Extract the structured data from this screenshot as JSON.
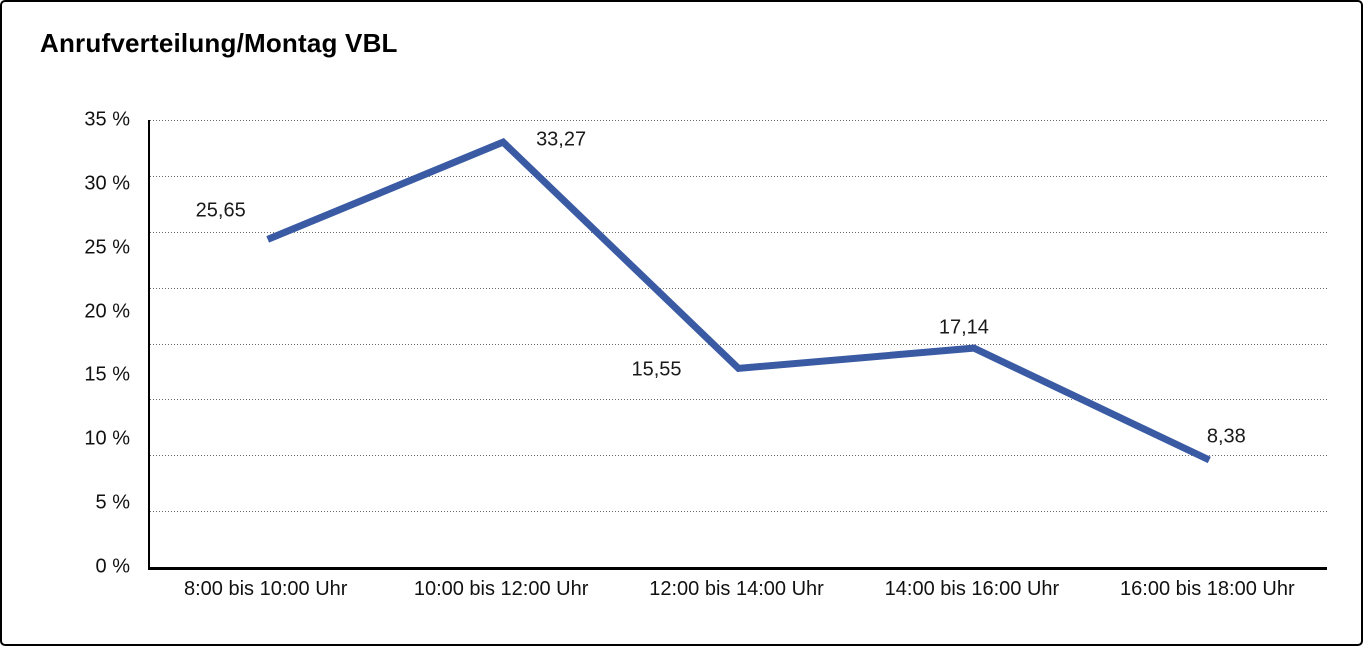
{
  "title": "Anrufverteilung/Montag VBL",
  "chart_data": {
    "type": "line",
    "title": "Anrufverteilung/Montag VBL",
    "categories": [
      "8:00 bis 10:00 Uhr",
      "10:00 bis 12:00 Uhr",
      "12:00 bis 14:00 Uhr",
      "14:00 bis 16:00 Uhr",
      "16:00 bis 18:00 Uhr"
    ],
    "values": [
      25.65,
      33.27,
      15.55,
      17.14,
      8.38
    ],
    "value_labels": [
      "25,65",
      "33,27",
      "15,55",
      "17,14",
      "8,38"
    ],
    "y_tick_labels": [
      "35 %",
      "30 %",
      "25 %",
      "20 %",
      "15 %",
      "10 %",
      "5 %",
      "0 %"
    ],
    "ylim": [
      0,
      35
    ],
    "y_tick_step": 5,
    "xlabel": "",
    "ylabel": "",
    "grid": "horizontal-dotted",
    "legend": "none",
    "line_color": "#3A5BA3"
  }
}
